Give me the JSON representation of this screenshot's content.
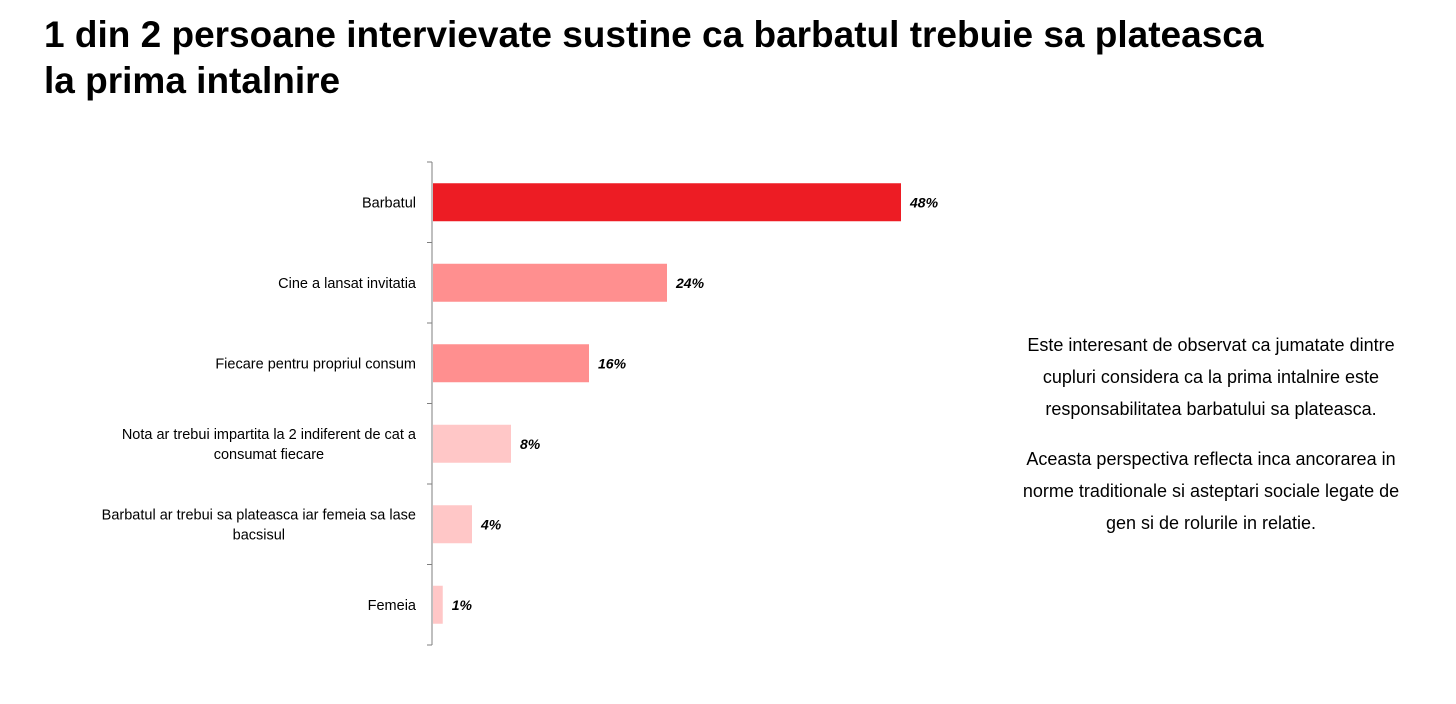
{
  "title_lines": [
    "1 din 2 persoane intervievate sustine ca barbatul trebuie sa plateasca",
    "la prima intalnire"
  ],
  "chart_data": {
    "type": "bar",
    "orientation": "horizontal",
    "title": "",
    "xlabel": "",
    "ylabel": "",
    "categories": [
      [
        "Barbatul"
      ],
      [
        "Cine a lansat invitatia"
      ],
      [
        "Fiecare pentru propriul consum"
      ],
      [
        "Nota ar trebui impartita la 2 indiferent de cat a",
        "consumat fiecare"
      ],
      [
        "Barbatul ar trebui sa plateasca iar femeia sa lase",
        "bacsisul"
      ],
      [
        "Femeia"
      ]
    ],
    "values": [
      48,
      24,
      16,
      8,
      4,
      1
    ],
    "value_labels": [
      "48%",
      "24%",
      "16%",
      "8%",
      "4%",
      "1%"
    ],
    "bar_colors": [
      "#ed1c24",
      "#ff8f8f",
      "#ff8f8f",
      "#ffc7c7",
      "#ffc7c7",
      "#ffc7c7"
    ],
    "xlim": [
      0,
      48
    ],
    "grid": false,
    "legend": "none"
  },
  "commentary": [
    [
      "Este interesant de observat ca jumatate dintre",
      "cupluri considera ca la prima intalnire este",
      "responsabilitatea barbatului sa plateasca."
    ],
    [
      "Aceasta perspectiva reflecta inca ancorarea in",
      "norme traditionale si asteptari sociale legate de",
      "gen si de rolurile in relatie."
    ]
  ],
  "colors": {
    "axis": "#7f7f7f"
  }
}
